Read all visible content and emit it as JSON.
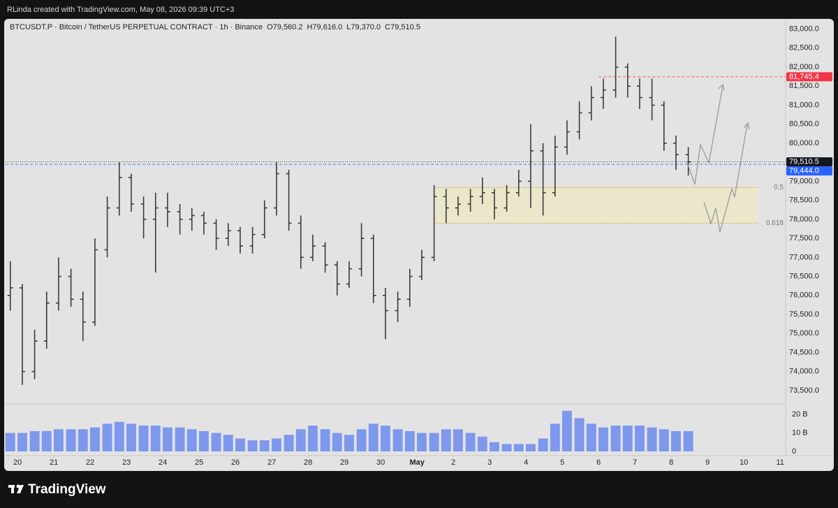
{
  "caption": "RLinda created with TradingView.com, May 08, 2026 09:39 UTC+3",
  "brand": "TradingView",
  "chart_data": {
    "type": "ohlc",
    "symbol": "BTCUSDT.P · Bitcoin / TetherUS PERPETUAL CONTRACT · 1h · Binance",
    "ohlc_legend": [
      "O79,560.2",
      "H79,616.0",
      "L79,370.0",
      "C79,510.5"
    ],
    "color": "#3a3a3a",
    "grid": false,
    "xlim": [
      -0.33,
      21.15
    ],
    "xticks": [
      {
        "value": 0,
        "label": "20"
      },
      {
        "value": 1,
        "label": "21"
      },
      {
        "value": 2,
        "label": "22"
      },
      {
        "value": 3,
        "label": "23"
      },
      {
        "value": 4,
        "label": "24"
      },
      {
        "value": 5,
        "label": "25"
      },
      {
        "value": 6,
        "label": "26"
      },
      {
        "value": 7,
        "label": "27"
      },
      {
        "value": 8,
        "label": "28"
      },
      {
        "value": 9,
        "label": "29"
      },
      {
        "value": 10,
        "label": "30"
      },
      {
        "value": 11,
        "label": "May"
      },
      {
        "value": 12,
        "label": "2"
      },
      {
        "value": 13,
        "label": "3"
      },
      {
        "value": 14,
        "label": "4"
      },
      {
        "value": 15,
        "label": "5"
      },
      {
        "value": 16,
        "label": "6"
      },
      {
        "value": 17,
        "label": "7"
      },
      {
        "value": 18,
        "label": "8"
      },
      {
        "value": 19,
        "label": "9"
      },
      {
        "value": 20,
        "label": "10"
      },
      {
        "value": 21,
        "label": "11"
      }
    ],
    "ylim": [
      73150,
      83250
    ],
    "yticks": [
      {
        "value": 73500,
        "label": "73,500.0"
      },
      {
        "value": 74000,
        "label": "74,000.0"
      },
      {
        "value": 74500,
        "label": "74,500.0"
      },
      {
        "value": 75000,
        "label": "75,000.0"
      },
      {
        "value": 75500,
        "label": "75,500.0"
      },
      {
        "value": 76000,
        "label": "76,000.0"
      },
      {
        "value": 76500,
        "label": "76,500.0"
      },
      {
        "value": 77000,
        "label": "77,000.0"
      },
      {
        "value": 77500,
        "label": "77,500.0"
      },
      {
        "value": 78000,
        "label": "78,000.0"
      },
      {
        "value": 78500,
        "label": "78,500.0"
      },
      {
        "value": 79000,
        "label": "79,000.0"
      },
      {
        "value": 79500,
        "label": "79,500.0"
      },
      {
        "value": 80000,
        "label": "80,000.0"
      },
      {
        "value": 80500,
        "label": "80,500.0"
      },
      {
        "value": 81000,
        "label": "81,000.0"
      },
      {
        "value": 81500,
        "label": "81,500.0"
      },
      {
        "value": 82000,
        "label": "82,000.0"
      },
      {
        "value": 82500,
        "label": "82,500.0"
      },
      {
        "value": 83000,
        "label": "83,000.0"
      }
    ],
    "x": [
      -0.2,
      0.13,
      0.47,
      0.8,
      1.13,
      1.47,
      1.8,
      2.13,
      2.47,
      2.8,
      3.13,
      3.47,
      3.8,
      4.13,
      4.47,
      4.8,
      5.13,
      5.47,
      5.8,
      6.13,
      6.47,
      6.8,
      7.13,
      7.47,
      7.8,
      8.13,
      8.47,
      8.8,
      9.13,
      9.47,
      9.8,
      10.13,
      10.47,
      10.8,
      11.13,
      11.47,
      11.8,
      12.13,
      12.47,
      12.8,
      13.13,
      13.47,
      13.8,
      14.13,
      14.47,
      14.8,
      15.13,
      15.47,
      15.8,
      16.13,
      16.47,
      16.8,
      17.13,
      17.47,
      17.8,
      18.13,
      18.47
    ],
    "open": [
      76000,
      76200,
      74000,
      74800,
      75800,
      76500,
      75900,
      75300,
      77200,
      78300,
      79100,
      78400,
      78000,
      78300,
      78200,
      78000,
      78100,
      77900,
      77500,
      77700,
      77300,
      77600,
      78300,
      79200,
      77900,
      77000,
      77300,
      76800,
      76300,
      76700,
      77500,
      76000,
      75600,
      75900,
      76500,
      77000,
      78600,
      78300,
      78400,
      78600,
      78700,
      78300,
      78700,
      79000,
      79800,
      78700,
      79900,
      80300,
      80800,
      81200,
      81400,
      82000,
      81500,
      81200,
      81000,
      80000,
      79700
    ],
    "high": [
      76900,
      76300,
      75100,
      76100,
      77000,
      76700,
      76100,
      77500,
      78600,
      79500,
      79200,
      78600,
      78700,
      78700,
      78400,
      78300,
      78200,
      78000,
      77900,
      77800,
      77800,
      78500,
      79500,
      79300,
      78100,
      77600,
      77400,
      76900,
      76900,
      77900,
      77600,
      76200,
      76100,
      76700,
      77200,
      78900,
      78800,
      78600,
      78800,
      79100,
      78800,
      78900,
      79300,
      80500,
      80000,
      80200,
      80600,
      81100,
      81500,
      81700,
      82800,
      82100,
      81700,
      81700,
      81100,
      80200,
      79900
    ],
    "low": [
      75600,
      73650,
      73800,
      74600,
      75600,
      75700,
      74800,
      75200,
      77000,
      78100,
      78200,
      77500,
      76600,
      77800,
      77600,
      77700,
      77600,
      77200,
      77300,
      77100,
      77100,
      77500,
      78100,
      77700,
      76700,
      76900,
      76600,
      76000,
      76200,
      76500,
      75800,
      74850,
      75300,
      75700,
      76400,
      76900,
      77900,
      78100,
      78200,
      78400,
      78000,
      78200,
      78600,
      78300,
      78100,
      78600,
      79700,
      80100,
      80600,
      80900,
      81200,
      81200,
      80900,
      80600,
      79800,
      79300,
      79150
    ],
    "close": [
      76200,
      74000,
      74800,
      75800,
      76500,
      75900,
      75300,
      77200,
      78300,
      79100,
      78400,
      78000,
      78300,
      78200,
      78000,
      78100,
      77900,
      77500,
      77700,
      77300,
      77600,
      78300,
      79200,
      77900,
      77000,
      77300,
      76800,
      76300,
      76700,
      77500,
      76000,
      75600,
      75900,
      76500,
      77000,
      78600,
      78300,
      78400,
      78600,
      78700,
      78300,
      78700,
      79000,
      79800,
      78700,
      79900,
      80300,
      80800,
      81200,
      81400,
      82000,
      81500,
      81200,
      81000,
      80000,
      79700,
      79510.5
    ],
    "volume": {
      "color": "#5b7ff0",
      "ylim": [
        0,
        25
      ],
      "yticks": [
        0,
        {
          "value": 10,
          "label": "10 B"
        },
        {
          "value": 20,
          "label": "20 B"
        }
      ],
      "values": [
        10,
        10,
        11,
        11,
        12,
        12,
        12,
        13,
        15,
        16,
        15,
        14,
        14,
        13,
        13,
        12,
        11,
        10,
        9,
        7,
        6,
        6,
        7,
        9,
        12,
        14,
        12,
        10,
        9,
        12,
        15,
        14,
        12,
        11,
        10,
        10,
        12,
        12,
        10,
        8,
        5,
        4,
        4,
        4,
        7,
        15,
        22,
        18,
        15,
        13,
        14,
        14,
        14,
        13,
        12,
        11,
        11
      ]
    },
    "price_levels": [
      {
        "value": 81745.4,
        "label": "81,745.4",
        "color": "#f23645",
        "x_start": 16
      },
      {
        "value": 79510.5,
        "label": "79,510.5",
        "color": "#131722",
        "x_start": -0.33
      },
      {
        "value": 79444.0,
        "label": "79,444.0",
        "color": "#2962ff",
        "x_start": -0.33
      }
    ],
    "fib_zone": {
      "x": [
        11.5,
        20.4
      ],
      "levels": [
        {
          "value": 78835,
          "label": "0.5"
        },
        {
          "value": 77899,
          "label": "0.618"
        }
      ]
    }
  }
}
